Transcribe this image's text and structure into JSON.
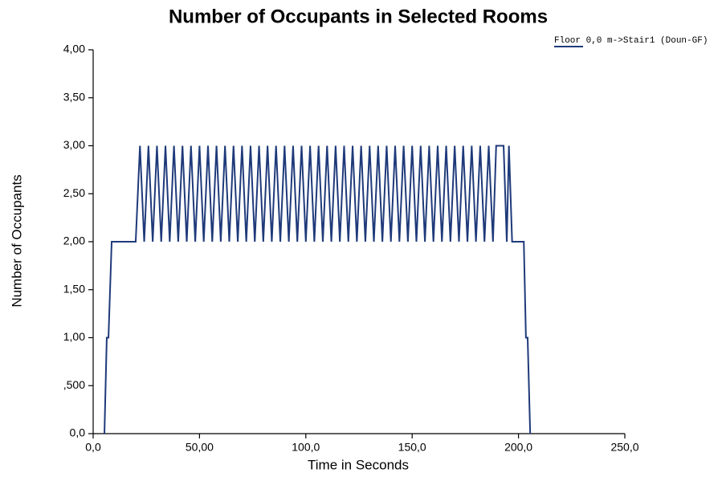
{
  "chart_data": {
    "type": "line",
    "title": "Number of Occupants in Selected Rooms",
    "x_label": "Time in Seconds",
    "y_label": "Number of Occupants",
    "x": [
      5.3,
      6.4,
      7.2,
      8.7,
      20,
      22,
      24,
      26,
      28,
      30,
      32,
      34,
      36,
      38,
      40,
      42,
      44,
      46,
      48,
      50,
      52,
      54,
      56,
      58,
      60,
      62,
      64,
      66,
      68,
      70,
      72,
      74,
      76,
      78,
      80,
      82,
      84,
      86,
      88,
      90,
      92,
      94,
      96,
      98,
      100,
      102,
      104,
      106,
      108,
      110,
      112,
      114,
      116,
      118,
      120,
      122,
      124,
      126,
      128,
      130,
      132,
      134,
      136,
      138,
      140,
      142,
      144,
      146,
      148,
      150,
      152,
      154,
      156,
      158,
      160,
      162,
      164,
      166,
      168,
      170,
      172,
      174,
      176,
      178,
      180,
      182,
      184,
      186,
      188,
      189.5,
      193,
      194.5,
      195.5,
      197,
      202.5,
      203.5,
      204.3,
      205.5
    ],
    "series": [
      {
        "name": "Floor 0,0 m->Stair1 (Doun-GF)",
        "color": "#1f3a7a",
        "values": [
          0,
          1,
          1,
          2,
          2,
          3,
          2,
          3,
          2,
          3,
          2,
          3,
          2,
          3,
          2,
          3,
          2,
          3,
          2,
          3,
          2,
          3,
          2,
          3,
          2,
          3,
          2,
          3,
          2,
          3,
          2,
          3,
          2,
          3,
          2,
          3,
          2,
          3,
          2,
          3,
          2,
          3,
          2,
          3,
          2,
          3,
          2,
          3,
          2,
          3,
          2,
          3,
          2,
          3,
          2,
          3,
          2,
          3,
          2,
          3,
          2,
          3,
          2,
          3,
          2,
          3,
          2,
          3,
          2,
          3,
          2,
          3,
          2,
          3,
          2,
          3,
          2,
          3,
          2,
          3,
          2,
          3,
          2,
          3,
          2,
          3,
          2,
          3,
          2,
          3,
          3,
          2,
          3,
          2,
          2,
          1,
          1,
          0
        ]
      }
    ],
    "xlim": [
      0,
      250
    ],
    "ylim": [
      0,
      4
    ],
    "xticks": [
      {
        "value": 0,
        "label": "0,0"
      },
      {
        "value": 50,
        "label": "50,00"
      },
      {
        "value": 100,
        "label": "100,0"
      },
      {
        "value": 150,
        "label": "150,0"
      },
      {
        "value": 200,
        "label": "200,0"
      },
      {
        "value": 250,
        "label": "250,0"
      }
    ],
    "yticks": [
      {
        "value": 0,
        "label": "0,0"
      },
      {
        "value": 0.5,
        "label": ",500"
      },
      {
        "value": 1,
        "label": "1,00"
      },
      {
        "value": 1.5,
        "label": "1,50"
      },
      {
        "value": 2,
        "label": "2,00"
      },
      {
        "value": 2.5,
        "label": "2,50"
      },
      {
        "value": 3,
        "label": "3,00"
      },
      {
        "value": 3.5,
        "label": "3,50"
      },
      {
        "value": 4,
        "label": "4,00"
      }
    ],
    "grid": false,
    "legend": "top-right"
  }
}
